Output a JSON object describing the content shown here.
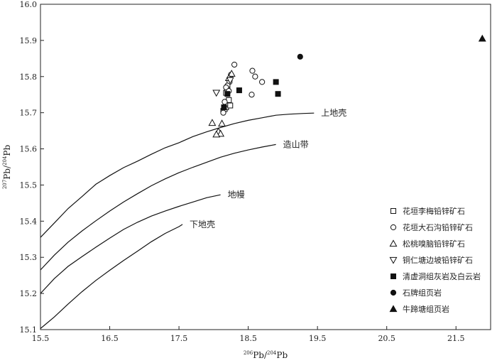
{
  "chart_data": {
    "type": "scatter",
    "xlim": [
      15.5,
      22.0
    ],
    "ylim": [
      15.1,
      16.0
    ],
    "x_ticks": [
      "15.5",
      "16.5",
      "17.5",
      "18.5",
      "19.5",
      "20.5",
      "21.5"
    ],
    "y_ticks": [
      "15.1",
      "15.2",
      "15.3",
      "15.4",
      "15.5",
      "15.6",
      "15.7",
      "15.8",
      "15.9",
      "16.0"
    ],
    "xlabel": {
      "sup": "206",
      "a": "Pb/",
      "sup2": "204",
      "b": "Pb"
    },
    "ylabel": {
      "sup": "207",
      "a": "Pb/",
      "sup2": "204",
      "b": "Pb"
    },
    "curves": [
      {
        "name": "上地壳",
        "points": [
          [
            15.5,
            15.355
          ],
          [
            15.7,
            15.395
          ],
          [
            15.9,
            15.435
          ],
          [
            16.1,
            15.468
          ],
          [
            16.3,
            15.502
          ],
          [
            16.5,
            15.526
          ],
          [
            16.7,
            15.548
          ],
          [
            16.9,
            15.566
          ],
          [
            17.1,
            15.585
          ],
          [
            17.3,
            15.603
          ],
          [
            17.5,
            15.617
          ],
          [
            17.7,
            15.634
          ],
          [
            17.9,
            15.647
          ],
          [
            18.1,
            15.659
          ],
          [
            18.3,
            15.67
          ],
          [
            18.5,
            15.679
          ],
          [
            18.7,
            15.686
          ],
          [
            18.9,
            15.693
          ],
          [
            19.1,
            15.696
          ],
          [
            19.3,
            15.698
          ],
          [
            19.45,
            15.699
          ]
        ]
      },
      {
        "name": "造山带",
        "points": [
          [
            15.5,
            15.265
          ],
          [
            15.7,
            15.306
          ],
          [
            15.9,
            15.342
          ],
          [
            16.1,
            15.373
          ],
          [
            16.3,
            15.401
          ],
          [
            16.5,
            15.428
          ],
          [
            16.7,
            15.453
          ],
          [
            16.9,
            15.476
          ],
          [
            17.1,
            15.498
          ],
          [
            17.3,
            15.517
          ],
          [
            17.5,
            15.534
          ],
          [
            17.7,
            15.549
          ],
          [
            17.9,
            15.563
          ],
          [
            18.1,
            15.577
          ],
          [
            18.3,
            15.588
          ],
          [
            18.5,
            15.597
          ],
          [
            18.7,
            15.605
          ],
          [
            18.9,
            15.612
          ]
        ]
      },
      {
        "name": "地幔",
        "points": [
          [
            15.5,
            15.2
          ],
          [
            15.7,
            15.241
          ],
          [
            15.9,
            15.275
          ],
          [
            16.1,
            15.302
          ],
          [
            16.3,
            15.328
          ],
          [
            16.5,
            15.353
          ],
          [
            16.7,
            15.377
          ],
          [
            16.9,
            15.397
          ],
          [
            17.1,
            15.414
          ],
          [
            17.3,
            15.428
          ],
          [
            17.5,
            15.441
          ],
          [
            17.7,
            15.453
          ],
          [
            17.9,
            15.465
          ],
          [
            18.1,
            15.473
          ]
        ]
      },
      {
        "name": "下地壳",
        "points": [
          [
            15.5,
            15.103
          ],
          [
            15.7,
            15.135
          ],
          [
            15.9,
            15.171
          ],
          [
            16.1,
            15.205
          ],
          [
            16.3,
            15.236
          ],
          [
            16.5,
            15.264
          ],
          [
            16.7,
            15.291
          ],
          [
            16.9,
            15.317
          ],
          [
            17.1,
            15.343
          ],
          [
            17.3,
            15.366
          ],
          [
            17.5,
            15.385
          ],
          [
            17.55,
            15.391
          ]
        ]
      }
    ],
    "series": [
      {
        "name": "花垣李梅铅锌矿石",
        "marker": "square-open",
        "points": [
          [
            18.14,
            15.705
          ],
          [
            18.16,
            15.71
          ],
          [
            18.18,
            15.715
          ],
          [
            18.2,
            15.725
          ],
          [
            18.22,
            15.735
          ],
          [
            18.18,
            15.755
          ],
          [
            18.2,
            15.765
          ],
          [
            18.24,
            15.72
          ]
        ]
      },
      {
        "name": "花垣大石沟铅锌矿石",
        "marker": "circle-open",
        "points": [
          [
            18.3,
            15.833
          ],
          [
            18.25,
            15.805
          ],
          [
            18.23,
            15.785
          ],
          [
            18.2,
            15.775
          ],
          [
            18.18,
            15.77
          ],
          [
            18.22,
            15.76
          ],
          [
            18.16,
            15.73
          ],
          [
            18.14,
            15.7
          ],
          [
            18.56,
            15.816
          ],
          [
            18.6,
            15.8
          ],
          [
            18.7,
            15.785
          ],
          [
            18.55,
            15.75
          ]
        ]
      },
      {
        "name": "松桃嗅脑铅锌矿石",
        "marker": "triangle-up-open",
        "points": [
          [
            17.98,
            15.672
          ],
          [
            18.07,
            15.648
          ],
          [
            18.1,
            15.642
          ],
          [
            18.04,
            15.64
          ],
          [
            18.12,
            15.67
          ],
          [
            18.26,
            15.808
          ],
          [
            18.22,
            15.796
          ]
        ]
      },
      {
        "name": "铜仁塘边坡铅锌矿石",
        "marker": "triangle-down-open",
        "points": [
          [
            18.04,
            15.755
          ],
          [
            18.24,
            15.79
          ]
        ]
      },
      {
        "name": "清虚洞组灰岩及白云岩",
        "marker": "square-filled",
        "points": [
          [
            18.15,
            15.715
          ],
          [
            18.2,
            15.752
          ],
          [
            18.37,
            15.762
          ],
          [
            18.9,
            15.785
          ],
          [
            18.93,
            15.752
          ]
        ]
      },
      {
        "name": "石牌组页岩",
        "marker": "circle-filled",
        "points": [
          [
            19.25,
            15.855
          ]
        ]
      },
      {
        "name": "牛蹄塘组页岩",
        "marker": "triangle-up-filled",
        "points": [
          [
            21.88,
            15.905
          ]
        ]
      }
    ],
    "legend": {
      "position": "bottom-right"
    },
    "grid": false
  }
}
